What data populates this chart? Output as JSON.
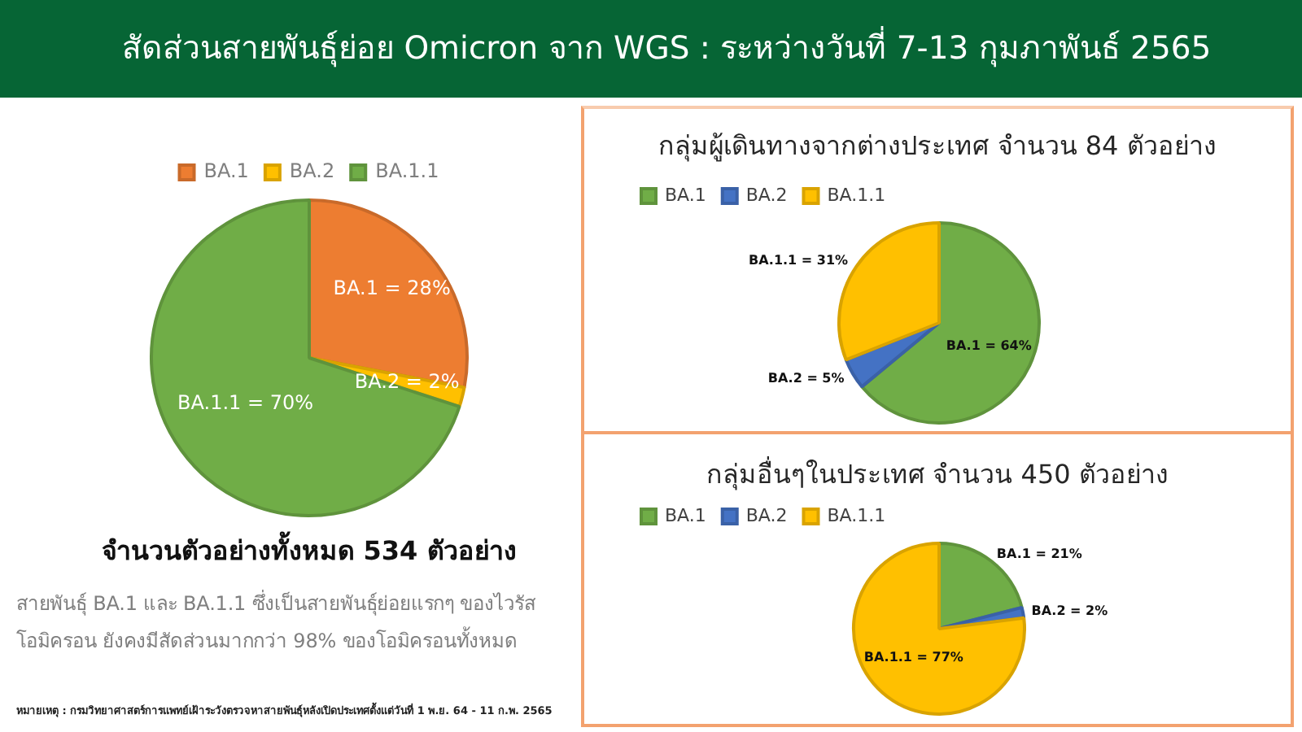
{
  "chart_data": [
    {
      "type": "pie",
      "title": "สัดส่วนสายพันธุ์ย่อย Omicron จาก WGS : ระหว่างวันที่ 7-13 กุมภาพันธ์ 2565",
      "subtitle": "จำนวนตัวอย่างทั้งหมด 534 ตัวอย่าง",
      "categories": [
        "BA.1",
        "BA.2",
        "BA.1.1"
      ],
      "values": [
        28,
        2,
        70
      ],
      "colors": [
        "#ed7d31",
        "#ffc000",
        "#70ad47"
      ],
      "value_labels": [
        "BA.1 = 28%",
        "BA.2 = 2%",
        "BA.1.1 = 70%"
      ],
      "legend": "top",
      "annotations": [
        "สายพันธุ์ BA.1 และ BA.1.1 ซึ่งเป็นสายพันธุ์ย่อยแรกๆ ของไวรัส โอมิครอน ยังคงมีสัดส่วนมากกว่า 98% ของโอมิครอนทั้งหมด",
        "หมายเหตุ : กรมวิทยาศาสตร์การแพทย์เฝ้าระวังตรวจหาสายพันธุ์หลังเปิดประเทศตั้งแต่วันที่ 1 พ.ย. 64 - 11 ก.พ. 2565"
      ]
    },
    {
      "type": "pie",
      "title": "กลุ่มผู้เดินทางจากต่างประเทศ จำนวน 84 ตัวอย่าง",
      "categories": [
        "BA.1",
        "BA.2",
        "BA.1.1"
      ],
      "values": [
        64,
        5,
        31
      ],
      "colors": [
        "#70ad47",
        "#4472c4",
        "#ffc000"
      ],
      "value_labels": [
        "BA.1 = 64%",
        "BA.2 = 5%",
        "BA.1.1 = 31%"
      ],
      "legend": "top left"
    },
    {
      "type": "pie",
      "title": "กลุ่มอื่นๆในประเทศ จำนวน 450 ตัวอย่าง",
      "categories": [
        "BA.1",
        "BA.2",
        "BA.1.1"
      ],
      "values": [
        21,
        2,
        77
      ],
      "colors": [
        "#70ad47",
        "#4472c4",
        "#ffc000"
      ],
      "value_labels": [
        "BA.1 = 21%",
        "BA.2 = 2%",
        "BA.1.1 = 77%"
      ],
      "legend": "top left"
    }
  ]
}
